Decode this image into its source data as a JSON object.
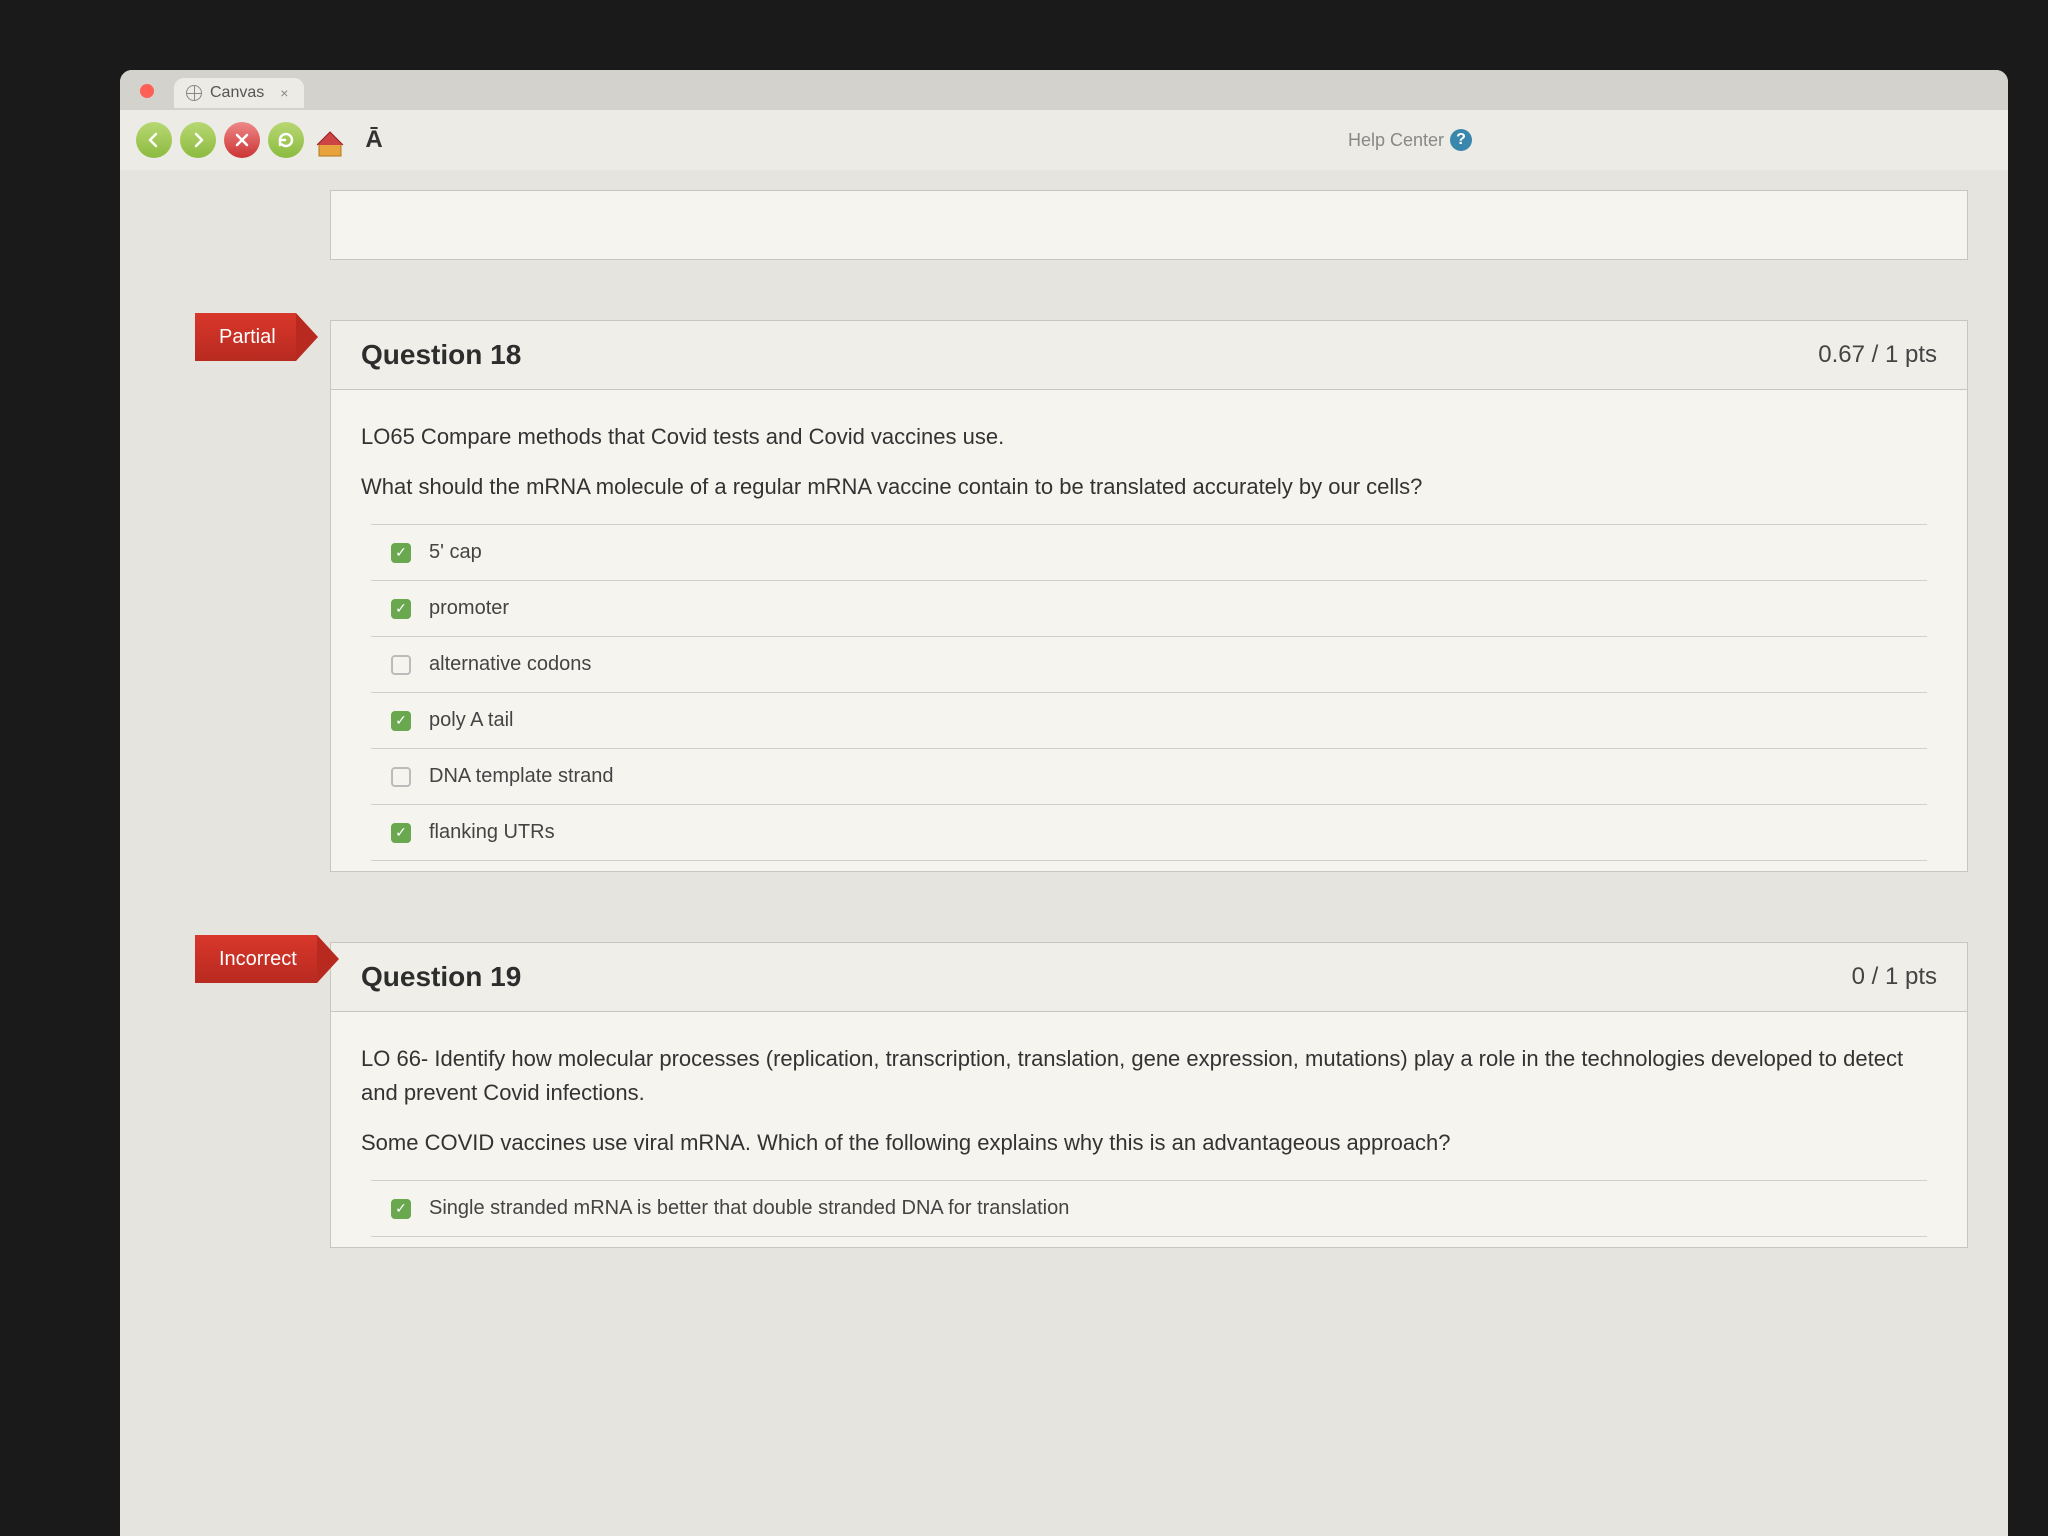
{
  "tab": {
    "title": "Canvas"
  },
  "toolbar": {
    "help_label": "Help Center",
    "font_glyph": "Ā"
  },
  "q18": {
    "flag": "Partial",
    "title": "Question 18",
    "points": "0.67 / 1 pts",
    "prompt1": "LO65 Compare methods that Covid tests and Covid vaccines use.",
    "prompt2": "What should the mRNA molecule of a regular mRNA vaccine  contain to be translated accurately by our cells?",
    "answers": [
      {
        "label": "5' cap",
        "checked": true
      },
      {
        "label": "promoter",
        "checked": true
      },
      {
        "label": "alternative codons",
        "checked": false
      },
      {
        "label": "poly A tail",
        "checked": true
      },
      {
        "label": "DNA template strand",
        "checked": false
      },
      {
        "label": "flanking UTRs",
        "checked": true
      }
    ]
  },
  "q19": {
    "flag": "Incorrect",
    "title": "Question 19",
    "points": "0 / 1 pts",
    "prompt1": "LO 66- Identify how molecular processes (replication, transcription, translation, gene expression, mutations) play a role in the technologies developed to detect and prevent Covid infections.",
    "prompt2": "Some COVID vaccines use viral mRNA. Which of the following explains why this is an advantageous approach?",
    "answers": [
      {
        "label": "Single stranded mRNA is better that double stranded DNA for translation",
        "checked": true
      }
    ]
  },
  "colors": {
    "flag_bg": "#d9372b",
    "checked_bg": "#6aa84f",
    "page_bg": "#e6e4de",
    "card_bg": "#f5f4ef",
    "border": "#c8c6c0"
  }
}
